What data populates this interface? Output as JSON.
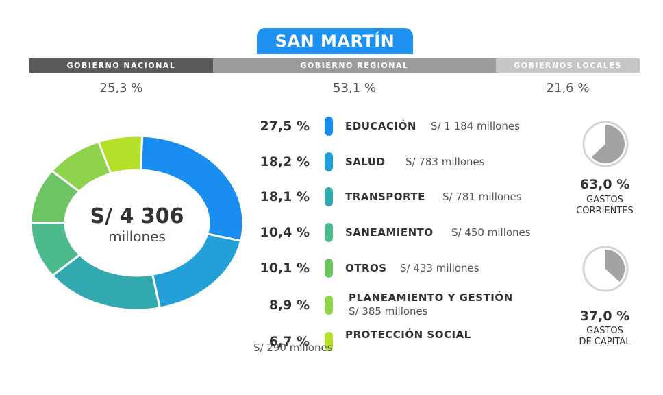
{
  "title": "SAN MARTÍN",
  "government": {
    "nacional": {
      "label": "GOBIERNO NACIONAL",
      "pct": "25,3 %"
    },
    "regional": {
      "label": "GOBIERNO REGIONAL",
      "pct": "53,1 %"
    },
    "locales": {
      "label": "GOBIERNOS LOCALES",
      "pct": "21,6 %"
    }
  },
  "total": {
    "amount": "S/ 4 306",
    "unit": "millones"
  },
  "items": [
    {
      "pct": "27,5 %",
      "name": "EDUCACIÓN",
      "amount": "S/ 1 184 millones"
    },
    {
      "pct": "18,2 %",
      "name": "SALUD",
      "amount": "S/ 783 millones"
    },
    {
      "pct": "18,1 %",
      "name": "TRANSPORTE",
      "amount": "S/ 781 millones"
    },
    {
      "pct": "10,4 %",
      "name": "SANEAMIENTO",
      "amount": "S/ 450 millones"
    },
    {
      "pct": "10,1 %",
      "name": "OTROS",
      "amount": "S/ 433 millones"
    },
    {
      "pct": "8,9 %",
      "name": "PLANEAMIENTO Y GESTIÓN",
      "amount": "S/ 385 millones"
    },
    {
      "pct": "6,7 %",
      "name": "PROTECCIÓN SOCIAL",
      "amount": "S/ 290 millones"
    }
  ],
  "corrientes": {
    "pct": "63,0 %",
    "label1": "GASTOS",
    "label2": "CORRIENTES"
  },
  "capital": {
    "pct": "37,0 %",
    "label1": "GASTOS",
    "label2": "DE CAPITAL"
  },
  "chart_data": [
    {
      "type": "pie",
      "categories": [
        "EDUCACIÓN",
        "SALUD",
        "TRANSPORTE",
        "SANEAMIENTO",
        "OTROS",
        "PLANEAMIENTO Y GESTIÓN",
        "PROTECCIÓN SOCIAL"
      ],
      "values": [
        27.5,
        18.2,
        18.1,
        10.4,
        10.1,
        8.9,
        6.7
      ],
      "amounts_millions": [
        1184,
        783,
        781,
        450,
        433,
        385,
        290
      ],
      "colors": [
        "#1a8ef0",
        "#23a0d8",
        "#33aab0",
        "#4cba8c",
        "#6cc464",
        "#8fd24c",
        "#b5e02a"
      ],
      "style": "donut"
    },
    {
      "type": "pie",
      "categories": [
        "GASTOS CORRIENTES",
        "GASTOS DE CAPITAL"
      ],
      "values": [
        63.0,
        37.0
      ],
      "colors": [
        "#a3a3a3",
        "#ffffff"
      ]
    },
    {
      "type": "pie",
      "categories": [
        "GASTOS DE CAPITAL",
        "GASTOS CORRIENTES"
      ],
      "values": [
        37.0,
        63.0
      ],
      "colors": [
        "#a3a3a3",
        "#ffffff"
      ]
    }
  ]
}
